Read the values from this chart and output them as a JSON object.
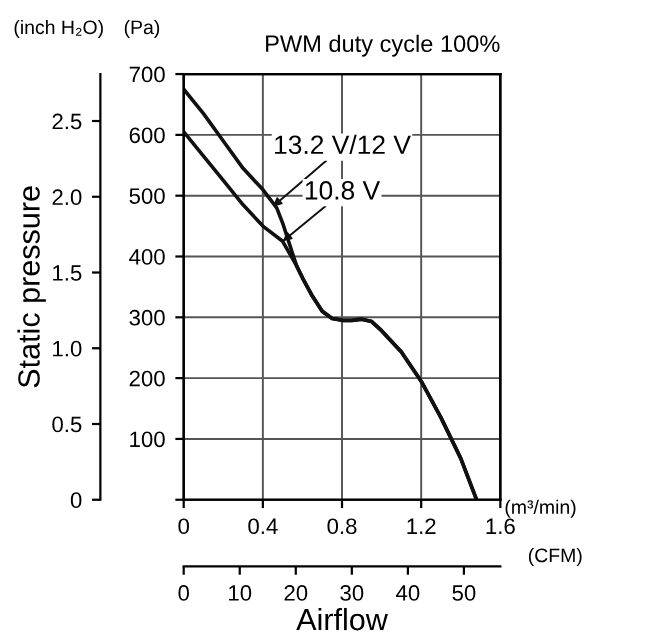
{
  "chart_data": {
    "type": "line",
    "title": "PWM duty cycle 100%",
    "xlabel": "Airflow",
    "y2label": "Static pressure",
    "annotations": [
      "(inch H₂O)",
      "(Pa)",
      "(m³/min)",
      "(CFM)"
    ],
    "series": [
      {
        "name": "13.2 V/12 V",
        "color": "#111111",
        "x": [
          0,
          0.1,
          0.2,
          0.3,
          0.4,
          0.47,
          0.5,
          0.57,
          0.6,
          0.65,
          0.7,
          0.75,
          0.8,
          0.85,
          0.9,
          0.95,
          1.0,
          1.1,
          1.2,
          1.3,
          1.4,
          1.48
        ],
        "values": [
          675,
          635,
          590,
          545,
          510,
          480,
          455,
          385,
          365,
          335,
          310,
          298,
          295,
          295,
          297,
          293,
          278,
          243,
          195,
          135,
          68,
          0
        ]
      },
      {
        "name": "10.8 V",
        "color": "#111111",
        "x": [
          0,
          0.1,
          0.2,
          0.3,
          0.4,
          0.5,
          0.57,
          0.6,
          0.65,
          0.7,
          0.75,
          0.8,
          0.85,
          0.9,
          0.95,
          1.0,
          1.1,
          1.2,
          1.3,
          1.4,
          1.48
        ],
        "values": [
          605,
          565,
          525,
          485,
          450,
          425,
          385,
          365,
          335,
          310,
          298,
          295,
          295,
          297,
          293,
          278,
          243,
          195,
          135,
          68,
          0
        ]
      }
    ],
    "xlim": [
      0,
      1.6
    ],
    "xticks": [
      0,
      0.4,
      0.8,
      1.2,
      1.6
    ],
    "ylim": [
      0,
      700
    ],
    "yticks": [
      {
        "value": 0,
        "label": null
      },
      100,
      200,
      300,
      400,
      500,
      600,
      700
    ],
    "y2lim": [
      0,
      2.81
    ],
    "y2ticks": [
      0,
      0.5,
      {
        "value": 1,
        "label": "1.0"
      },
      1.5,
      {
        "value": 2,
        "label": "2.0"
      },
      2.5
    ],
    "x2lim": [
      0,
      56.5
    ],
    "x2ticks": [
      0,
      10,
      20,
      30,
      40,
      50
    ],
    "grid": true,
    "marker": "none",
    "line_style": "solid"
  }
}
